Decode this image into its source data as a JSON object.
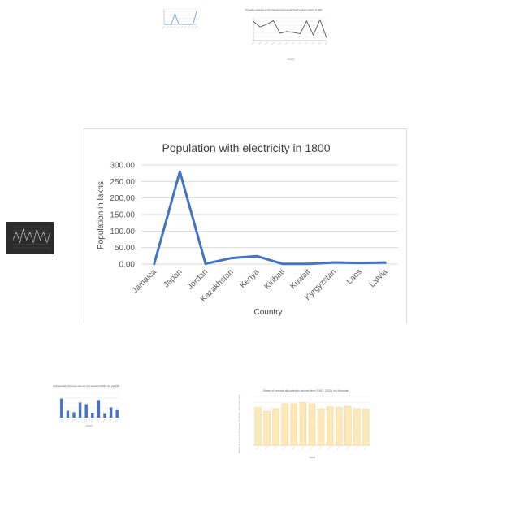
{
  "main_chart": {
    "chart_data": {
      "type": "line",
      "title": "Population with electricity in 1800",
      "xlabel": "Country",
      "ylabel": "Population in lakhs",
      "categories": [
        "Jamaica",
        "Japan",
        "Jordan",
        "Kazakhstan",
        "Kenya",
        "Kiribati",
        "Kuwait",
        "Kyrgyzstan",
        "Laos",
        "Latvia"
      ],
      "series": [
        {
          "values": [
            0.5,
            280,
            1,
            18,
            24,
            0.5,
            0.5,
            5,
            3.5,
            4.5
          ]
        }
      ],
      "ylim": [
        0,
        300
      ],
      "yticks": [
        "0.00",
        "50.00",
        "100.00",
        "150.00",
        "200.00",
        "250.00",
        "300.00"
      ],
      "grid": true,
      "line_color": "#4472c4"
    }
  },
  "thumb_top_left": {
    "chart_data": {
      "type": "line",
      "values": [
        0,
        0,
        0,
        70,
        5,
        0,
        0,
        0,
        0,
        85
      ],
      "ylim": [
        0,
        100
      ],
      "line_color": "#5b9bd5"
    }
  },
  "thumb_top_right": {
    "chart_data": {
      "type": "line",
      "title": "Air quality measures on the national environmental health tracking network in 2004",
      "xlabel": "Country",
      "values": [
        5.2,
        4.0,
        4.6,
        5.4,
        2.6,
        3.0,
        2.8,
        2.5,
        5.3,
        2.2,
        5.6,
        1.6
      ],
      "ylim": [
        1,
        6
      ],
      "line_color": "#404040"
    }
  },
  "thumb_left_dark": {
    "chart_data": {
      "type": "line",
      "values": [
        3,
        6,
        2,
        7,
        3,
        6,
        2,
        7,
        3,
        6,
        2,
        6
      ],
      "ylim": [
        0,
        8
      ],
      "line_color": "#d9d9d9"
    }
  },
  "thumb_bottom_left": {
    "chart_data": {
      "type": "bar",
      "title": "Urban population (%) living in cities with more population (2000) in the year 2008",
      "xlabel": "Country",
      "values": [
        78,
        28,
        22,
        62,
        55,
        20,
        72,
        18,
        42,
        34
      ],
      "ylim": [
        0,
        100
      ],
      "bar_color": "#4472c4"
    }
  },
  "thumb_bottom_right": {
    "chart_data": {
      "type": "bar",
      "title": "Share of cereals allocated to animal feed (FAO, 2020) in Lithuania",
      "xlabel": "YEAR",
      "ylabel": "SHARE OF CEREALS ALLOCATED TO ANIMAL FEED (FAO, 2020)",
      "values": [
        62,
        56,
        60,
        68,
        68,
        70,
        68,
        60,
        63,
        62,
        64,
        60,
        59
      ],
      "ylim": [
        0,
        80
      ],
      "bar_color": "#fde9b8",
      "bar_stroke": "#f2c36b"
    }
  }
}
